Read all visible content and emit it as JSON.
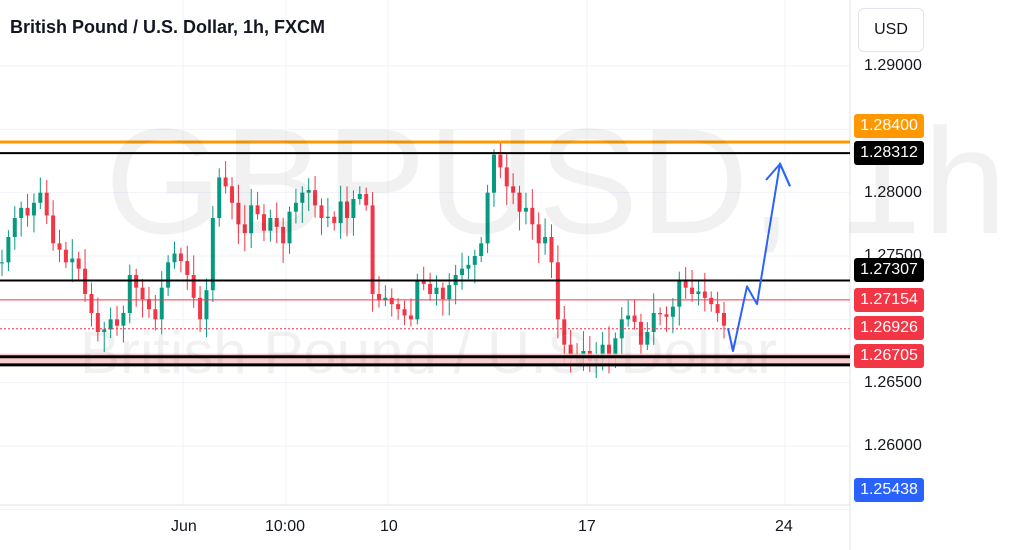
{
  "header": {
    "title": "British Pound / U.S. Dollar, 1h, FXCM",
    "currency": "USD"
  },
  "watermark": {
    "symbol": "GBPUSD, 1h",
    "name": "British Pound / U.S. Dollar"
  },
  "price_axis": {
    "ticks": [
      "1.29000",
      "1.28000",
      "1.27500",
      "1.26500",
      "1.26000"
    ]
  },
  "time_axis": {
    "ticks": [
      "Jun",
      "10:00",
      "10",
      "17",
      "24"
    ]
  },
  "price_badges": [
    {
      "value": "1.28400",
      "color": "#ff9800"
    },
    {
      "value": "1.28312",
      "color": "#000000"
    },
    {
      "value": "1.27307",
      "color": "#000000"
    },
    {
      "value": "1.27154",
      "color": "#f23645"
    },
    {
      "value": "1.26926",
      "color": "#f23645"
    },
    {
      "value": "1.26705",
      "color": "#f23645"
    },
    {
      "value": "1.25438",
      "color": "#2962ff"
    }
  ],
  "chart_data": {
    "type": "candlestick",
    "horizontal_levels": [
      1.284,
      1.28312,
      1.27307,
      1.27154,
      1.26926,
      1.26705,
      1.2664,
      1.2662
    ],
    "zone": {
      "from": 1.2664,
      "to": 1.2673
    },
    "projection_path": [
      1.2693,
      1.2675,
      1.2726,
      1.2712,
      1.2823,
      1.2805
    ],
    "series": [
      {
        "name": "price",
        "values": [
          1.2745,
          1.2765,
          1.278,
          1.2788,
          1.2782,
          1.2792,
          1.28,
          1.2782,
          1.276,
          1.2755,
          1.2745,
          1.2748,
          1.274,
          1.272,
          1.2705,
          1.269,
          1.2692,
          1.27,
          1.2695,
          1.2705,
          1.2735,
          1.2725,
          1.2716,
          1.2708,
          1.27,
          1.2725,
          1.2745,
          1.2752,
          1.2746,
          1.2735,
          1.2717,
          1.27,
          1.2723,
          1.278,
          1.2812,
          1.2805,
          1.2792,
          1.2775,
          1.2768,
          1.279,
          1.2783,
          1.277,
          1.278,
          1.2773,
          1.276,
          1.2785,
          1.2792,
          1.28,
          1.2802,
          1.279,
          1.278,
          1.2781,
          1.2776,
          1.2793,
          1.278,
          1.2795,
          1.2799,
          1.279,
          1.272,
          1.2715,
          1.2717,
          1.2712,
          1.2708,
          1.2703,
          1.27,
          1.273,
          1.2728,
          1.272,
          1.2725,
          1.2716,
          1.2727,
          1.2735,
          1.274,
          1.2743,
          1.275,
          1.276,
          1.28,
          1.283,
          1.282,
          1.2805,
          1.28,
          1.2785,
          1.2788,
          1.2775,
          1.276,
          1.2765,
          1.2745,
          1.27,
          1.268,
          1.2672,
          1.267,
          1.2675,
          1.2667,
          1.2669,
          1.268,
          1.267,
          1.2685,
          1.27,
          1.2703,
          1.2698,
          1.268,
          1.269,
          1.2705,
          1.2704,
          1.2702,
          1.271,
          1.273,
          1.2725,
          1.272,
          1.2722,
          1.2717,
          1.2712,
          1.2705,
          1.2695
        ]
      }
    ],
    "xlabel": "",
    "ylabel": ""
  }
}
